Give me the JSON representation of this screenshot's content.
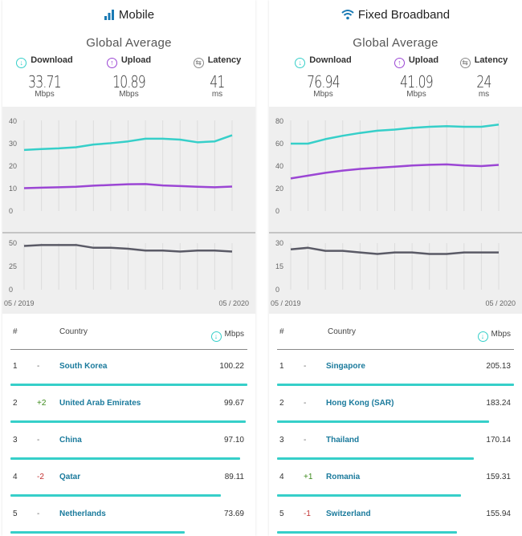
{
  "colors": {
    "download": "#36cfc9",
    "upload": "#9b46d4",
    "latency": "#5a5a66"
  },
  "panels": [
    {
      "title": "Mobile",
      "icon": "signal-bars-icon",
      "subtitle": "Global Average",
      "metrics": [
        {
          "label": "Download",
          "value": "33.71",
          "unit": "Mbps"
        },
        {
          "label": "Upload",
          "value": "10.89",
          "unit": "Mbps"
        },
        {
          "label": "Latency",
          "value": "41",
          "unit": "ms"
        }
      ],
      "x_start": "05 / 2019",
      "x_end": "05 / 2020",
      "speed_ticks": [
        "40",
        "30",
        "20",
        "10",
        "0"
      ],
      "latency_ticks": [
        "50",
        "25",
        "0"
      ],
      "table_headers": {
        "rank": "#",
        "country": "Country",
        "unit": "Mbps"
      },
      "rows": [
        {
          "rank": "1",
          "change": "-",
          "country": "South Korea",
          "value": "100.22"
        },
        {
          "rank": "2",
          "change": "+2",
          "country": "United Arab Emirates",
          "value": "99.67"
        },
        {
          "rank": "3",
          "change": "-",
          "country": "China",
          "value": "97.10"
        },
        {
          "rank": "4",
          "change": "-2",
          "country": "Qatar",
          "value": "89.11"
        },
        {
          "rank": "5",
          "change": "-",
          "country": "Netherlands",
          "value": "73.69"
        }
      ]
    },
    {
      "title": "Fixed Broadband",
      "icon": "wifi-icon",
      "subtitle": "Global Average",
      "metrics": [
        {
          "label": "Download",
          "value": "76.94",
          "unit": "Mbps"
        },
        {
          "label": "Upload",
          "value": "41.09",
          "unit": "Mbps"
        },
        {
          "label": "Latency",
          "value": "24",
          "unit": "ms"
        }
      ],
      "x_start": "05 / 2019",
      "x_end": "05 / 2020",
      "speed_ticks": [
        "80",
        "60",
        "40",
        "20",
        "0"
      ],
      "latency_ticks": [
        "30",
        "15",
        "0"
      ],
      "table_headers": {
        "rank": "#",
        "country": "Country",
        "unit": "Mbps"
      },
      "rows": [
        {
          "rank": "1",
          "change": "-",
          "country": "Singapore",
          "value": "205.13"
        },
        {
          "rank": "2",
          "change": "-",
          "country": "Hong Kong (SAR)",
          "value": "183.24"
        },
        {
          "rank": "3",
          "change": "-",
          "country": "Thailand",
          "value": "170.14"
        },
        {
          "rank": "4",
          "change": "+1",
          "country": "Romania",
          "value": "159.31"
        },
        {
          "rank": "5",
          "change": "-1",
          "country": "Switzerland",
          "value": "155.94"
        }
      ]
    }
  ],
  "chart_data": [
    {
      "type": "line",
      "x": [
        "05 / 2019",
        "06 / 2019",
        "07 / 2019",
        "08 / 2019",
        "09 / 2019",
        "10 / 2019",
        "11 / 2019",
        "12 / 2019",
        "01 / 2020",
        "02 / 2020",
        "03 / 2020",
        "04 / 2020",
        "05 / 2020"
      ],
      "ylim": [
        0,
        40
      ],
      "series": [
        {
          "values": [
            27.2,
            27.6,
            27.9,
            28.4,
            29.6,
            30.2,
            31.0,
            32.2,
            32.2,
            31.8,
            30.6,
            31.0,
            33.71
          ]
        },
        {
          "values": [
            10.2,
            10.4,
            10.6,
            10.8,
            11.3,
            11.6,
            11.9,
            12.0,
            11.4,
            11.1,
            10.8,
            10.6,
            10.89
          ]
        }
      ]
    },
    {
      "type": "line",
      "x": [
        "05 / 2019",
        "06 / 2019",
        "07 / 2019",
        "08 / 2019",
        "09 / 2019",
        "10 / 2019",
        "11 / 2019",
        "12 / 2019",
        "01 / 2020",
        "02 / 2020",
        "03 / 2020",
        "04 / 2020",
        "05 / 2020"
      ],
      "ylim": [
        0,
        50
      ],
      "series": [
        {
          "values": [
            47,
            48,
            48,
            48,
            45,
            45,
            44,
            42,
            42,
            41,
            42,
            42,
            41
          ]
        }
      ]
    },
    {
      "type": "line",
      "x": [
        "05 / 2019",
        "06 / 2019",
        "07 / 2019",
        "08 / 2019",
        "09 / 2019",
        "10 / 2019",
        "11 / 2019",
        "12 / 2019",
        "01 / 2020",
        "02 / 2020",
        "03 / 2020",
        "04 / 2020",
        "05 / 2020"
      ],
      "ylim": [
        0,
        80
      ],
      "series": [
        {
          "values": [
            60,
            60,
            64,
            67,
            69.5,
            71.5,
            72.5,
            74,
            75,
            75.5,
            75,
            75,
            76.94
          ]
        },
        {
          "values": [
            29,
            31.5,
            34,
            36,
            37.5,
            38.5,
            39.5,
            40.5,
            41.2,
            41.5,
            40.5,
            40,
            41.09
          ]
        }
      ]
    },
    {
      "type": "line",
      "x": [
        "05 / 2019",
        "06 / 2019",
        "07 / 2019",
        "08 / 2019",
        "09 / 2019",
        "10 / 2019",
        "11 / 2019",
        "12 / 2019",
        "01 / 2020",
        "02 / 2020",
        "03 / 2020",
        "04 / 2020",
        "05 / 2020"
      ],
      "ylim": [
        0,
        30
      ],
      "series": [
        {
          "values": [
            26,
            27,
            25,
            25,
            24,
            23,
            24,
            24,
            23,
            23,
            24,
            24,
            24
          ]
        }
      ]
    }
  ]
}
